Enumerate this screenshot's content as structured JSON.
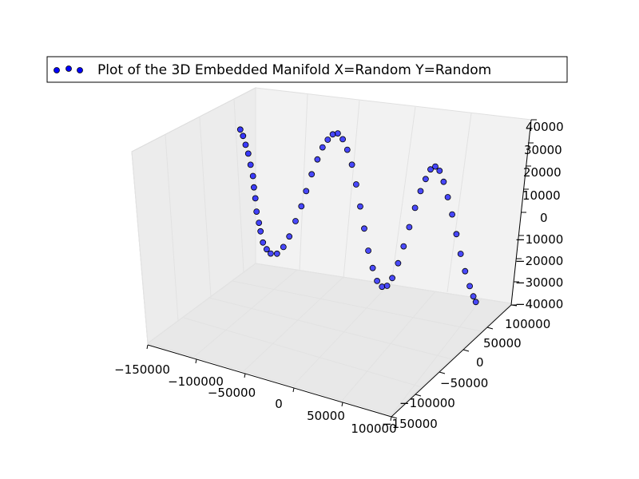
{
  "chart_data": {
    "type": "scatter",
    "projection": "3d",
    "title": "",
    "xlabel": "",
    "ylabel": "",
    "zlabel": "",
    "grid": true,
    "legend": {
      "placement": "top-left",
      "entries": [
        "Plot of the 3D Embedded Manifold X=Random Y=Random"
      ]
    },
    "colors": {
      "marker": "#0000ff",
      "edge": "#000000",
      "pane": "#f2f2f2",
      "grid": "#e6e6e6"
    },
    "xlim": [
      -150000,
      100000
    ],
    "ylim": [
      -150000,
      100000
    ],
    "zlim": [
      -40000,
      40000
    ],
    "x_ticks": [
      "−150000",
      "−100000",
      "−50000",
      "0",
      "50000",
      "100000"
    ],
    "y_ticks": [
      "−150000",
      "−100000",
      "−50000",
      "0",
      "50000",
      "100000"
    ],
    "z_ticks": [
      "−40000",
      "−30000",
      "−20000",
      "−10000",
      "0",
      "10000",
      "20000",
      "30000",
      "40000"
    ],
    "series": [
      {
        "name": "Plot of the 3D Embedded Manifold X=Random Y=Random",
        "points": [
          [
            -131000,
            -24000,
            28000
          ],
          [
            -129000,
            -21000,
            25000
          ],
          [
            -127000,
            -18000,
            21000
          ],
          [
            -125000,
            -15000,
            17000
          ],
          [
            -123000,
            -12000,
            12000
          ],
          [
            -121000,
            -9000,
            7000
          ],
          [
            -120000,
            -7000,
            2000
          ],
          [
            -119000,
            -4000,
            -3000
          ],
          [
            -118000,
            -1000,
            -9000
          ],
          [
            -116000,
            2000,
            -14000
          ],
          [
            -115000,
            5000,
            -18000
          ],
          [
            -113000,
            8000,
            -23000
          ],
          [
            -110000,
            11000,
            -26000
          ],
          [
            -107000,
            14000,
            -28000
          ],
          [
            -102000,
            17000,
            -28000
          ],
          [
            -97000,
            19000,
            -25000
          ],
          [
            -92000,
            19000,
            -20000
          ],
          [
            -87000,
            19000,
            -13000
          ],
          [
            -82000,
            18000,
            -6000
          ],
          [
            -78000,
            17000,
            1000
          ],
          [
            -73000,
            15000,
            9000
          ],
          [
            -68000,
            14000,
            16000
          ],
          [
            -63000,
            12000,
            22000
          ],
          [
            -58000,
            11000,
            26000
          ],
          [
            -53000,
            10000,
            29000
          ],
          [
            -48000,
            10000,
            30000
          ],
          [
            -43000,
            11000,
            28000
          ],
          [
            -38000,
            12000,
            24000
          ],
          [
            -33000,
            14000,
            18000
          ],
          [
            -28000,
            16000,
            10000
          ],
          [
            -23000,
            18000,
            1000
          ],
          [
            -18000,
            20000,
            -8000
          ],
          [
            -13000,
            22000,
            -17000
          ],
          [
            -8000,
            24000,
            -24000
          ],
          [
            -3000,
            25000,
            -29000
          ],
          [
            2000,
            26000,
            -31000
          ],
          [
            7000,
            26000,
            -30000
          ],
          [
            12000,
            25000,
            -26000
          ],
          [
            17000,
            24000,
            -19000
          ],
          [
            22000,
            22000,
            -11000
          ],
          [
            27000,
            20000,
            -2000
          ],
          [
            32000,
            18000,
            7000
          ],
          [
            37000,
            16000,
            15000
          ],
          [
            42000,
            14000,
            21000
          ],
          [
            47000,
            12000,
            26000
          ],
          [
            52000,
            11000,
            28000
          ],
          [
            57000,
            10000,
            27000
          ],
          [
            62000,
            10000,
            23000
          ],
          [
            67000,
            11000,
            17000
          ],
          [
            72000,
            13000,
            10000
          ],
          [
            77000,
            15000,
            2000
          ],
          [
            82000,
            17000,
            -6000
          ],
          [
            87000,
            19000,
            -13000
          ],
          [
            92000,
            21000,
            -19000
          ],
          [
            96000,
            22000,
            -23000
          ],
          [
            99000,
            22000,
            -25000
          ]
        ]
      }
    ]
  }
}
